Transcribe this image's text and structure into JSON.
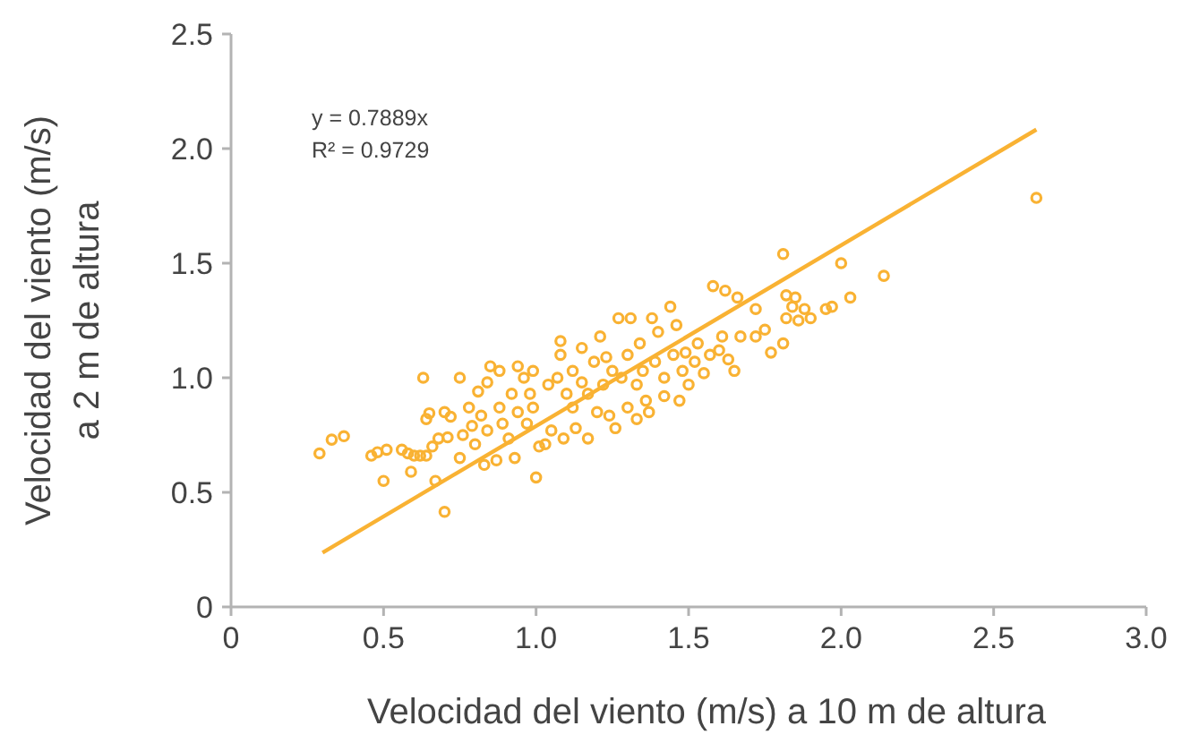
{
  "chart_data": {
    "type": "scatter",
    "xlabel": "Velocidad del viento (m/s) a 10 m de altura",
    "ylabel": "Velocidad del viento (m/s)\na 2 m de altura",
    "xlim": [
      0,
      3
    ],
    "ylim": [
      0,
      2.5
    ],
    "xticks": [
      0,
      0.5,
      {
        "value": 1,
        "label": "1.0"
      },
      1.5,
      {
        "value": 2,
        "label": "2.0"
      },
      2.5,
      {
        "value": 3,
        "label": "3.0"
      }
    ],
    "yticks": [
      0,
      0.5,
      {
        "value": 1,
        "label": "1.0"
      },
      1.5,
      {
        "value": 2,
        "label": "2.0"
      },
      2.5
    ],
    "grid": false,
    "marker": "circle",
    "annotations": [
      "y = 0.7889x",
      "R² = 0.9729"
    ],
    "series": [
      {
        "color": "#f9b233",
        "x": [
          0.29,
          0.33,
          0.37,
          0.46,
          0.48,
          0.51,
          0.5,
          0.56,
          0.58,
          0.6,
          0.62,
          0.64,
          0.59,
          0.63,
          0.64,
          0.65,
          0.67,
          0.66,
          0.7,
          0.7,
          0.72,
          0.68,
          0.71,
          0.75,
          0.75,
          0.76,
          0.78,
          0.79,
          0.8,
          0.81,
          0.82,
          0.83,
          0.84,
          0.84,
          0.85,
          0.88,
          0.87,
          0.88,
          0.89,
          0.91,
          0.92,
          0.93,
          0.94,
          0.94,
          0.96,
          0.97,
          0.98,
          0.99,
          0.99,
          1.0,
          1.01,
          1.03,
          1.04,
          1.05,
          1.07,
          1.08,
          1.08,
          1.09,
          1.1,
          1.12,
          1.12,
          1.13,
          1.15,
          1.15,
          1.17,
          1.17,
          1.19,
          1.2,
          1.21,
          1.22,
          1.23,
          1.24,
          1.25,
          1.26,
          1.27,
          1.28,
          1.3,
          1.3,
          1.31,
          1.33,
          1.33,
          1.34,
          1.35,
          1.36,
          1.37,
          1.38,
          1.39,
          1.4,
          1.42,
          1.42,
          1.44,
          1.45,
          1.46,
          1.47,
          1.48,
          1.49,
          1.5,
          1.52,
          1.53,
          1.55,
          1.57,
          1.58,
          1.6,
          1.61,
          1.62,
          1.63,
          1.65,
          1.66,
          1.67,
          1.72,
          1.72,
          1.75,
          1.77,
          1.81,
          1.81,
          1.82,
          1.82,
          1.84,
          1.85,
          1.86,
          1.88,
          1.9,
          1.95,
          1.97,
          2.0,
          2.03,
          2.14,
          2.64
        ],
        "values": [
          0.67,
          0.73,
          0.745,
          0.66,
          0.675,
          0.686,
          0.55,
          0.686,
          0.67,
          0.66,
          0.66,
          0.66,
          0.59,
          1.0,
          0.82,
          0.845,
          0.55,
          0.7,
          0.415,
          0.85,
          0.83,
          0.735,
          0.74,
          1.0,
          0.65,
          0.75,
          0.87,
          0.79,
          0.71,
          0.94,
          0.835,
          0.62,
          0.98,
          0.77,
          1.05,
          1.03,
          0.64,
          0.87,
          0.8,
          0.735,
          0.93,
          0.65,
          1.05,
          0.85,
          1.0,
          0.8,
          0.93,
          0.87,
          1.03,
          0.565,
          0.7,
          0.71,
          0.97,
          0.77,
          1.0,
          1.1,
          1.16,
          0.735,
          0.93,
          0.87,
          1.03,
          0.78,
          1.13,
          0.98,
          0.735,
          0.93,
          1.07,
          0.85,
          1.18,
          0.97,
          1.09,
          0.835,
          1.03,
          0.78,
          1.26,
          1.0,
          0.87,
          1.1,
          1.26,
          0.97,
          0.82,
          1.15,
          1.03,
          0.9,
          0.85,
          1.26,
          1.07,
          1.2,
          0.92,
          1.0,
          1.31,
          1.1,
          1.23,
          0.9,
          1.03,
          1.11,
          0.97,
          1.07,
          1.15,
          1.02,
          1.1,
          1.4,
          1.12,
          1.18,
          1.38,
          1.08,
          1.03,
          1.35,
          1.18,
          1.3,
          1.18,
          1.21,
          1.11,
          1.15,
          1.54,
          1.36,
          1.26,
          1.31,
          1.35,
          1.25,
          1.3,
          1.26,
          1.3,
          1.31,
          1.5,
          1.35,
          1.445,
          1.785
        ]
      },
      {
        "type": "line",
        "color": "#f9b233",
        "x": [
          0.3,
          2.64
        ],
        "values": [
          0.237,
          2.083
        ],
        "marker": "none"
      }
    ]
  }
}
